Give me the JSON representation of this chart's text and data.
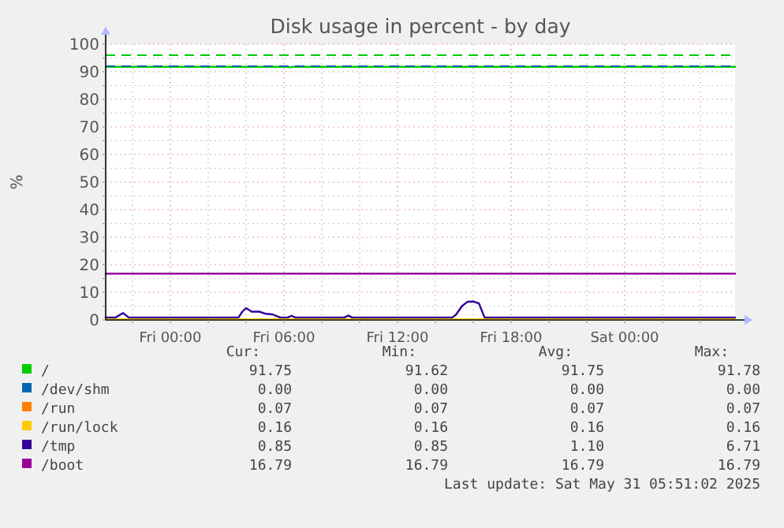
{
  "chart_data": {
    "type": "line",
    "title": "Disk usage in percent - by day",
    "ylabel": "%",
    "xlim": [
      "2025-05-29T20:35",
      "2025-05-31T05:50"
    ],
    "xticks": [
      {
        "value": "2025-05-29T22:00",
        "label": null
      },
      {
        "value": "2025-05-30T00:00",
        "label": "Fri 00:00"
      },
      {
        "value": "2025-05-30T02:00",
        "label": null
      },
      {
        "value": "2025-05-30T04:00",
        "label": null
      },
      {
        "value": "2025-05-30T06:00",
        "label": "Fri 06:00"
      },
      {
        "value": "2025-05-30T08:00",
        "label": null
      },
      {
        "value": "2025-05-30T10:00",
        "label": null
      },
      {
        "value": "2025-05-30T12:00",
        "label": "Fri 12:00"
      },
      {
        "value": "2025-05-30T14:00",
        "label": null
      },
      {
        "value": "2025-05-30T16:00",
        "label": null
      },
      {
        "value": "2025-05-30T18:00",
        "label": "Fri 18:00"
      },
      {
        "value": "2025-05-30T20:00",
        "label": null
      },
      {
        "value": "2025-05-30T22:00",
        "label": null
      },
      {
        "value": "2025-05-31T00:00",
        "label": "Sat 00:00"
      },
      {
        "value": "2025-05-31T02:00",
        "label": null
      },
      {
        "value": "2025-05-31T04:00",
        "label": null
      }
    ],
    "ylim": [
      0,
      100
    ],
    "yticks": [
      0,
      {
        "value": 5,
        "label": null
      },
      10,
      {
        "value": 15,
        "label": null
      },
      20,
      {
        "value": 25,
        "label": null
      },
      30,
      {
        "value": 35,
        "label": null
      },
      40,
      {
        "value": 45,
        "label": null
      },
      50,
      {
        "value": 55,
        "label": null
      },
      60,
      {
        "value": 65,
        "label": null
      },
      70,
      {
        "value": 75,
        "label": null
      },
      80,
      {
        "value": 85,
        "label": null
      },
      90,
      {
        "value": 95,
        "label": null
      },
      100
    ],
    "grid": true,
    "legend": "bottom",
    "line_style": "solid",
    "marker": "none",
    "ref_lines": [
      {
        "axis": "y",
        "value": 92,
        "color": "#0066b3",
        "line_style": "dashed"
      },
      {
        "axis": "y",
        "value": 96,
        "color": "#00cc00",
        "line_style": "dashed"
      }
    ],
    "series": [
      {
        "name": "/",
        "color": "#00cc00",
        "x": [
          "2025-05-29T20:35",
          "2025-05-30T06:06",
          "2025-05-30T06:18",
          "2025-05-30T06:30",
          "2025-05-31T05:50"
        ],
        "values": [
          91.8,
          91.8,
          91.6,
          91.8,
          91.8
        ]
      },
      {
        "name": "/dev/shm",
        "color": "#0066b3"
      },
      {
        "name": "/run",
        "color": "#ff8000"
      },
      {
        "name": "/run/lock",
        "color": "#ffcc00",
        "x": [
          "2025-05-29T20:35",
          "2025-05-31T05:50"
        ],
        "values": [
          0.2,
          0.2
        ]
      },
      {
        "name": "/tmp",
        "color": "#330099",
        "x": [
          "2025-05-29T20:35",
          "2025-05-29T21:06",
          "2025-05-29T21:30",
          "2025-05-29T21:48",
          "2025-05-30T03:36",
          "2025-05-30T03:48",
          "2025-05-30T04:00",
          "2025-05-30T04:18",
          "2025-05-30T04:42",
          "2025-05-30T05:00",
          "2025-05-30T05:24",
          "2025-05-30T05:48",
          "2025-05-30T06:12",
          "2025-05-30T06:24",
          "2025-05-30T06:36",
          "2025-05-30T09:12",
          "2025-05-30T09:24",
          "2025-05-30T09:36",
          "2025-05-30T14:54",
          "2025-05-30T15:06",
          "2025-05-30T15:24",
          "2025-05-30T15:42",
          "2025-05-30T16:00",
          "2025-05-30T16:18",
          "2025-05-30T16:36",
          "2025-05-31T05:50"
        ],
        "values": [
          0.9,
          0.9,
          2.5,
          0.9,
          0.9,
          3,
          4.3,
          3,
          3,
          2.3,
          2,
          0.9,
          0.9,
          1.5,
          0.9,
          0.9,
          1.6,
          0.9,
          0.9,
          2,
          5,
          6.6,
          6.7,
          6,
          0.9,
          0.9
        ]
      },
      {
        "name": "/boot",
        "color": "#990099",
        "x": [
          "2025-05-29T20:35",
          "2025-05-31T05:50"
        ],
        "values": [
          16.8,
          16.8
        ]
      }
    ],
    "annotations": [
      "Cur:",
      "Min:",
      "Avg:",
      "Max:",
      "91.75",
      "91.62",
      "91.75",
      "91.78",
      "0.00",
      "0.00",
      "0.00",
      "0.00",
      "0.07",
      "0.07",
      "0.07",
      "0.07",
      "0.16",
      "0.16",
      "0.16",
      "0.16",
      "0.85",
      "0.85",
      "1.10",
      "6.71",
      "16.79",
      "16.79",
      "16.79",
      "16.79",
      "Last update: Sat May 31 05:51:02 2025"
    ]
  }
}
